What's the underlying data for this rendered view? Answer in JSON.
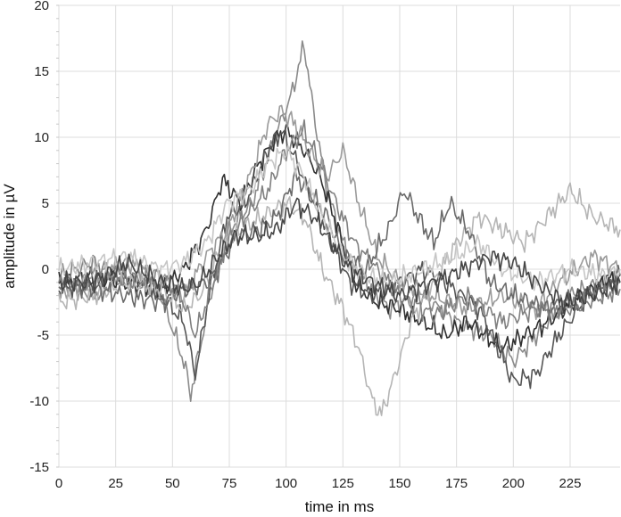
{
  "chart_data": {
    "type": "line",
    "xlabel": "time in ms",
    "ylabel": "amplitude in µV",
    "xlim": [
      0,
      247
    ],
    "ylim": [
      -15,
      20
    ],
    "grid": true,
    "legend": "none",
    "x_ticks": [
      0,
      25,
      50,
      75,
      100,
      125,
      150,
      175,
      200,
      225
    ],
    "x_tick_labels": [
      "0",
      "25",
      "50",
      "75",
      "100",
      "125",
      "150",
      "175",
      "200",
      "225"
    ],
    "y_ticks": [
      20,
      15,
      10,
      5,
      0,
      -5,
      -10,
      -15
    ],
    "y_tick_labels": [
      "20",
      "15",
      "10",
      "5",
      "0",
      "-5",
      "-10",
      "-15"
    ],
    "series": [
      {
        "color": "#8a8a8a",
        "points": [
          [
            0,
            -1
          ],
          [
            15,
            -2
          ],
          [
            30,
            -0.5
          ],
          [
            45,
            -2
          ],
          [
            55,
            -7
          ],
          [
            58,
            -9.5
          ],
          [
            62,
            -6
          ],
          [
            68,
            -1
          ],
          [
            75,
            3
          ],
          [
            85,
            5
          ],
          [
            95,
            10
          ],
          [
            102,
            13
          ],
          [
            108,
            17
          ],
          [
            112,
            12
          ],
          [
            118,
            6
          ],
          [
            125,
            2
          ],
          [
            135,
            -1
          ],
          [
            145,
            -3
          ],
          [
            160,
            -2
          ],
          [
            175,
            -4
          ],
          [
            190,
            -5
          ],
          [
            200,
            -7
          ],
          [
            210,
            -5
          ],
          [
            225,
            -2
          ],
          [
            240,
            -1
          ],
          [
            247,
            -1
          ]
        ]
      },
      {
        "color": "#303030",
        "points": [
          [
            0,
            -1
          ],
          [
            15,
            -0.5
          ],
          [
            30,
            -1
          ],
          [
            45,
            -1.5
          ],
          [
            55,
            0
          ],
          [
            65,
            3
          ],
          [
            72,
            6.8
          ],
          [
            80,
            5
          ],
          [
            88,
            8
          ],
          [
            96,
            10
          ],
          [
            100,
            10.5
          ],
          [
            108,
            9
          ],
          [
            115,
            7
          ],
          [
            122,
            3.5
          ],
          [
            130,
            -1
          ],
          [
            140,
            -2.5
          ],
          [
            150,
            -3
          ],
          [
            160,
            -4
          ],
          [
            170,
            -5
          ],
          [
            180,
            -4
          ],
          [
            195,
            -6
          ],
          [
            205,
            -5
          ],
          [
            215,
            -4
          ],
          [
            230,
            -2
          ],
          [
            240,
            -1
          ],
          [
            247,
            -0.5
          ]
        ]
      },
      {
        "color": "#555555",
        "points": [
          [
            0,
            -1.5
          ],
          [
            15,
            -1
          ],
          [
            30,
            0
          ],
          [
            45,
            -2
          ],
          [
            55,
            -4
          ],
          [
            60,
            -8
          ],
          [
            66,
            -2
          ],
          [
            74,
            4
          ],
          [
            82,
            5
          ],
          [
            92,
            9
          ],
          [
            98,
            10.5
          ],
          [
            105,
            8
          ],
          [
            112,
            5
          ],
          [
            120,
            2
          ],
          [
            128,
            -1
          ],
          [
            138,
            -2
          ],
          [
            150,
            -1
          ],
          [
            160,
            0
          ],
          [
            170,
            -1
          ],
          [
            185,
            -3
          ],
          [
            200,
            -8.5
          ],
          [
            210,
            -8
          ],
          [
            220,
            -5
          ],
          [
            235,
            -1.5
          ],
          [
            247,
            -0.5
          ]
        ]
      },
      {
        "color": "#9a9a9a",
        "points": [
          [
            0,
            -2
          ],
          [
            15,
            -0.5
          ],
          [
            30,
            0.5
          ],
          [
            45,
            -0.5
          ],
          [
            55,
            -2
          ],
          [
            65,
            1
          ],
          [
            74,
            3
          ],
          [
            84,
            7
          ],
          [
            92,
            11
          ],
          [
            98,
            12
          ],
          [
            104,
            11
          ],
          [
            110,
            9
          ],
          [
            118,
            7
          ],
          [
            125,
            9
          ],
          [
            132,
            5
          ],
          [
            140,
            1
          ],
          [
            150,
            -1
          ],
          [
            165,
            -2
          ],
          [
            180,
            -3
          ],
          [
            195,
            -2
          ],
          [
            210,
            -3
          ],
          [
            220,
            -1
          ],
          [
            235,
            1
          ],
          [
            247,
            0
          ]
        ]
      },
      {
        "color": "#b5b5b5",
        "points": [
          [
            0,
            -2.5
          ],
          [
            15,
            -2
          ],
          [
            30,
            -1
          ],
          [
            45,
            -1.5
          ],
          [
            55,
            -3
          ],
          [
            62,
            -2
          ],
          [
            70,
            1
          ],
          [
            80,
            3
          ],
          [
            90,
            4
          ],
          [
            100,
            5
          ],
          [
            108,
            4
          ],
          [
            116,
            0
          ],
          [
            125,
            -3
          ],
          [
            132,
            -6
          ],
          [
            138,
            -10
          ],
          [
            142,
            -11
          ],
          [
            148,
            -8
          ],
          [
            155,
            -4
          ],
          [
            165,
            -1
          ],
          [
            175,
            2
          ],
          [
            185,
            4
          ],
          [
            195,
            3
          ],
          [
            205,
            2
          ],
          [
            215,
            4
          ],
          [
            225,
            6
          ],
          [
            235,
            4
          ],
          [
            247,
            3
          ]
        ]
      },
      {
        "color": "#6a6a6a",
        "points": [
          [
            0,
            -1
          ],
          [
            15,
            -1.5
          ],
          [
            30,
            -2
          ],
          [
            45,
            -2.5
          ],
          [
            55,
            -1.5
          ],
          [
            65,
            -1
          ],
          [
            70,
            0
          ],
          [
            78,
            2.5
          ],
          [
            88,
            3
          ],
          [
            96,
            4
          ],
          [
            104,
            7
          ],
          [
            110,
            6
          ],
          [
            118,
            4
          ],
          [
            125,
            1
          ],
          [
            135,
            0
          ],
          [
            145,
            3
          ],
          [
            152,
            6
          ],
          [
            158,
            4
          ],
          [
            165,
            2
          ],
          [
            172,
            5
          ],
          [
            180,
            3
          ],
          [
            190,
            -1
          ],
          [
            200,
            -2
          ],
          [
            215,
            -3
          ],
          [
            230,
            -2
          ],
          [
            247,
            -1
          ]
        ]
      },
      {
        "color": "#808080",
        "points": [
          [
            0,
            -0.5
          ],
          [
            15,
            0.5
          ],
          [
            30,
            -1
          ],
          [
            45,
            -0.5
          ],
          [
            55,
            -2.5
          ],
          [
            60,
            -5
          ],
          [
            66,
            -2
          ],
          [
            74,
            2
          ],
          [
            82,
            4
          ],
          [
            92,
            6
          ],
          [
            100,
            9
          ],
          [
            108,
            10.5
          ],
          [
            115,
            8
          ],
          [
            122,
            5
          ],
          [
            130,
            2
          ],
          [
            140,
            0
          ],
          [
            150,
            -2
          ],
          [
            165,
            -3.5
          ],
          [
            180,
            -2
          ],
          [
            195,
            -4
          ],
          [
            210,
            -3
          ],
          [
            225,
            -3
          ],
          [
            240,
            -2
          ],
          [
            247,
            -1.5
          ]
        ]
      },
      {
        "color": "#c6c6c6",
        "points": [
          [
            0,
            0
          ],
          [
            15,
            0.5
          ],
          [
            30,
            1
          ],
          [
            45,
            0
          ],
          [
            55,
            0.5
          ],
          [
            65,
            2
          ],
          [
            74,
            5
          ],
          [
            84,
            6
          ],
          [
            92,
            8
          ],
          [
            100,
            9
          ],
          [
            108,
            7
          ],
          [
            116,
            4
          ],
          [
            125,
            1
          ],
          [
            135,
            -0.5
          ],
          [
            145,
            -1
          ],
          [
            160,
            0
          ],
          [
            175,
            1
          ],
          [
            185,
            2
          ],
          [
            195,
            0
          ],
          [
            210,
            -1
          ],
          [
            225,
            0
          ],
          [
            240,
            -0.5
          ],
          [
            247,
            0
          ]
        ]
      },
      {
        "color": "#454545",
        "points": [
          [
            0,
            -1
          ],
          [
            15,
            -1
          ],
          [
            30,
            0.5
          ],
          [
            45,
            -1
          ],
          [
            55,
            -1.5
          ],
          [
            62,
            -1
          ],
          [
            70,
            1
          ],
          [
            78,
            2.5
          ],
          [
            88,
            2.5
          ],
          [
            96,
            3
          ],
          [
            104,
            5
          ],
          [
            112,
            4
          ],
          [
            120,
            2
          ],
          [
            128,
            0
          ],
          [
            138,
            -1
          ],
          [
            150,
            -2
          ],
          [
            165,
            -1
          ],
          [
            178,
            0
          ],
          [
            190,
            1
          ],
          [
            200,
            0.5
          ],
          [
            210,
            -1
          ],
          [
            222,
            -2.5
          ],
          [
            235,
            -2
          ],
          [
            247,
            -1
          ]
        ]
      }
    ]
  }
}
